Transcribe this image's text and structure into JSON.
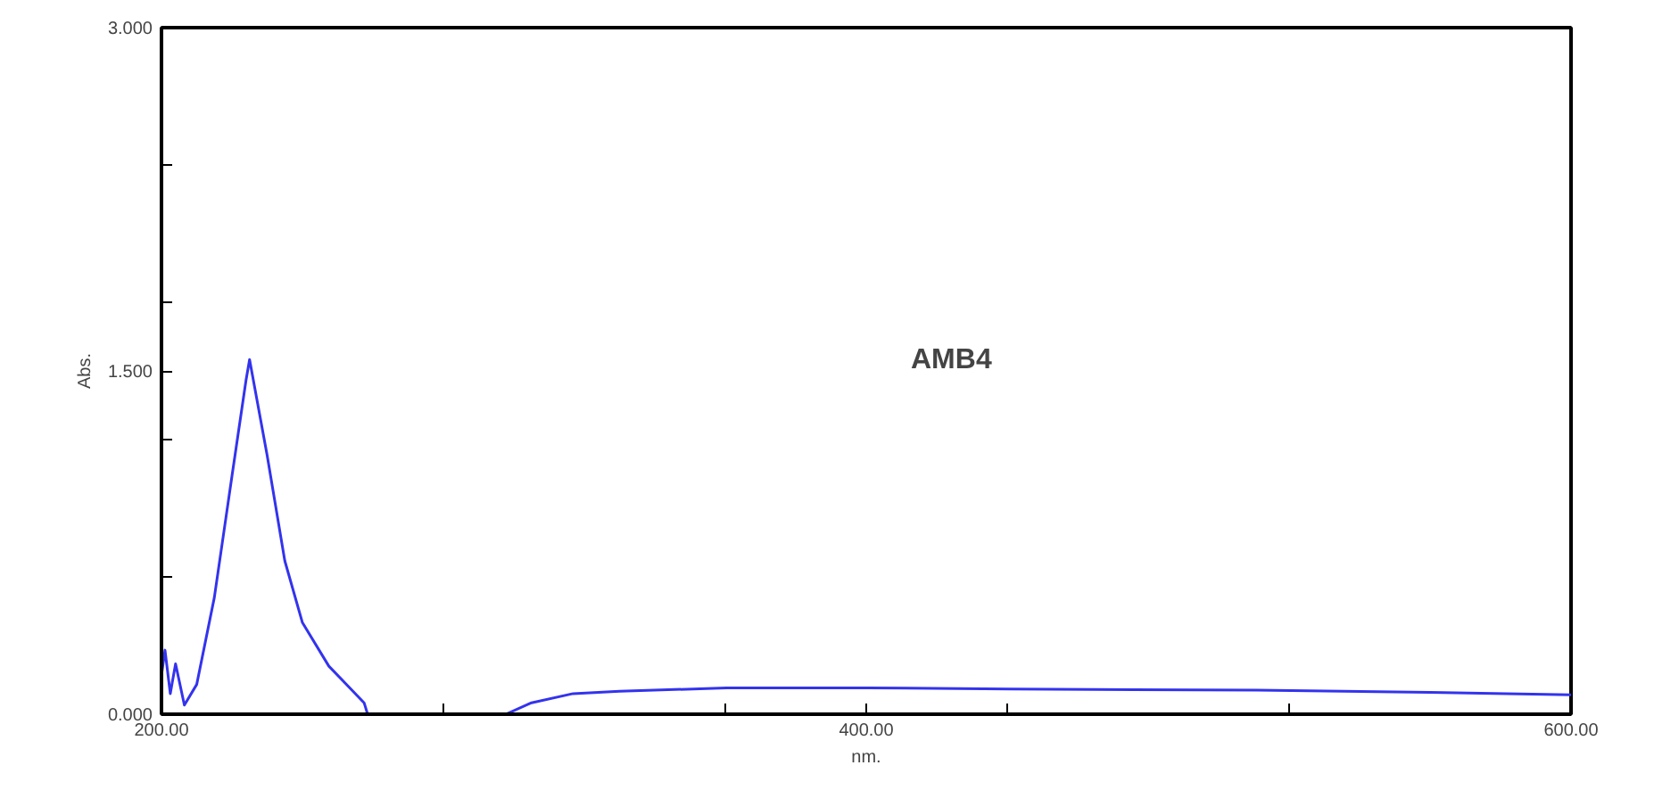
{
  "chart_data": {
    "type": "line",
    "xlabel": "nm.",
    "ylabel": "Abs.",
    "annotations": [
      "AMB4"
    ],
    "x": [
      200,
      201,
      202.5,
      204,
      206.5,
      210,
      215,
      220,
      224,
      225,
      230,
      235,
      240,
      247.5,
      257.5,
      258.5,
      280,
      297.7,
      305,
      316.8,
      330,
      360.4,
      400.5,
      440.6,
      510.8,
      560,
      600
    ],
    "series": [
      {
        "color": "#3333ee",
        "values": [
          0.17,
          0.28,
          0.09,
          0.22,
          0.04,
          0.13,
          0.51,
          1.04,
          1.46,
          1.55,
          1.13,
          0.67,
          0.4,
          0.21,
          0.05,
          0,
          0,
          0,
          0.05,
          0.09,
          0.1,
          0.115,
          0.115,
          0.11,
          0.105,
          0.095,
          0.085
        ]
      }
    ],
    "xlim": [
      200,
      600
    ],
    "ylim": [
      0,
      3
    ],
    "xticks": [
      {
        "value": 200,
        "label": "200.00"
      },
      {
        "value": 280,
        "label": null
      },
      {
        "value": 360,
        "label": null
      },
      {
        "value": 400,
        "label": "400.00"
      },
      {
        "value": 440,
        "label": null
      },
      {
        "value": 520,
        "label": null
      },
      {
        "value": 600,
        "label": "600.00"
      }
    ],
    "yticks": [
      {
        "value": 0,
        "label": "0.000"
      },
      {
        "value": 0.6,
        "label": null
      },
      {
        "value": 1.2,
        "label": null
      },
      {
        "value": 1.5,
        "label": "1.500"
      },
      {
        "value": 1.8,
        "label": null
      },
      {
        "value": 2.4,
        "label": null
      },
      {
        "value": 3,
        "label": "3.000"
      }
    ],
    "grid": false,
    "marker": "none",
    "line_style": "solid"
  }
}
